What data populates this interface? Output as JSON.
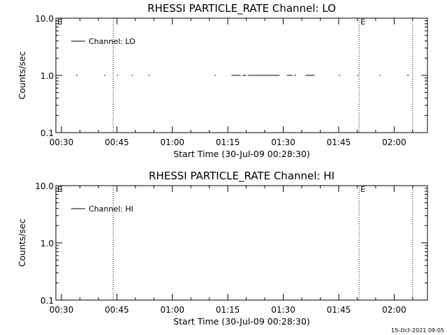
{
  "chart_data": [
    {
      "type": "line",
      "title": "RHESSI PARTICLE_RATE Channel: LO",
      "xlabel": "Start Time (30-Jul-09 00:28:30)",
      "ylabel": "Counts/sec",
      "y_scale": "log",
      "ylim": [
        0.1,
        10.0
      ],
      "yticks": [
        {
          "value": 0.1,
          "label": "0.1"
        },
        {
          "value": 1.0,
          "label": "1.0"
        },
        {
          "value": 10.0,
          "label": "10.0"
        }
      ],
      "xlim": [
        "00:28:30",
        "02:09:00"
      ],
      "xticks": [
        "00:30",
        "00:45",
        "01:00",
        "01:15",
        "01:30",
        "01:45",
        "02:00"
      ],
      "vertical_markers": [
        {
          "time": "00:44:00",
          "label": ""
        },
        {
          "time": "01:50:30",
          "label": "E"
        },
        {
          "time": "02:05:00",
          "label": ""
        }
      ],
      "corner_marker": "E",
      "series": [
        {
          "name": "Channel: LO",
          "color": "#000000",
          "segments": [
            {
              "start": "00:34:00",
              "end": "00:34:20",
              "value": 1.0
            },
            {
              "start": "00:41:30",
              "end": "00:41:50",
              "value": 1.0
            },
            {
              "start": "00:45:00",
              "end": "00:45:20",
              "value": 1.0
            },
            {
              "start": "00:49:00",
              "end": "00:49:20",
              "value": 1.0
            },
            {
              "start": "00:53:30",
              "end": "00:53:50",
              "value": 1.0
            },
            {
              "start": "01:11:30",
              "end": "01:11:50",
              "value": 1.0
            },
            {
              "start": "01:16:00",
              "end": "01:18:30",
              "value": 1.0
            },
            {
              "start": "01:19:00",
              "end": "01:20:00",
              "value": 1.0
            },
            {
              "start": "01:20:30",
              "end": "01:29:00",
              "value": 1.0
            },
            {
              "start": "01:31:00",
              "end": "01:32:30",
              "value": 1.0
            },
            {
              "start": "01:33:00",
              "end": "01:33:30",
              "value": 1.0
            },
            {
              "start": "01:36:00",
              "end": "01:38:30",
              "value": 1.0
            },
            {
              "start": "01:45:00",
              "end": "01:45:20",
              "value": 1.0
            },
            {
              "start": "01:50:00",
              "end": "01:50:20",
              "value": 1.0
            },
            {
              "start": "01:56:00",
              "end": "01:56:20",
              "value": 1.0
            },
            {
              "start": "02:03:30",
              "end": "02:04:00",
              "value": 1.0
            }
          ]
        }
      ]
    },
    {
      "type": "line",
      "title": "RHESSI PARTICLE_RATE Channel: HI",
      "xlabel": "Start Time (30-Jul-09 00:28:30)",
      "ylabel": "Counts/sec",
      "y_scale": "log",
      "ylim": [
        0.1,
        10.0
      ],
      "yticks": [
        {
          "value": 0.1,
          "label": "0.1"
        },
        {
          "value": 1.0,
          "label": "1.0"
        },
        {
          "value": 10.0,
          "label": "10.0"
        }
      ],
      "xlim": [
        "00:28:30",
        "02:09:00"
      ],
      "xticks": [
        "00:30",
        "00:45",
        "01:00",
        "01:15",
        "01:30",
        "01:45",
        "02:00"
      ],
      "vertical_markers": [
        {
          "time": "00:44:00",
          "label": ""
        },
        {
          "time": "01:50:30",
          "label": "E"
        },
        {
          "time": "02:05:00",
          "label": ""
        }
      ],
      "corner_marker": "E",
      "series": [
        {
          "name": "Channel: HI",
          "color": "#000000",
          "segments": []
        }
      ]
    }
  ],
  "footer": {
    "timestamp": "15-Oct-2021 09:05"
  }
}
